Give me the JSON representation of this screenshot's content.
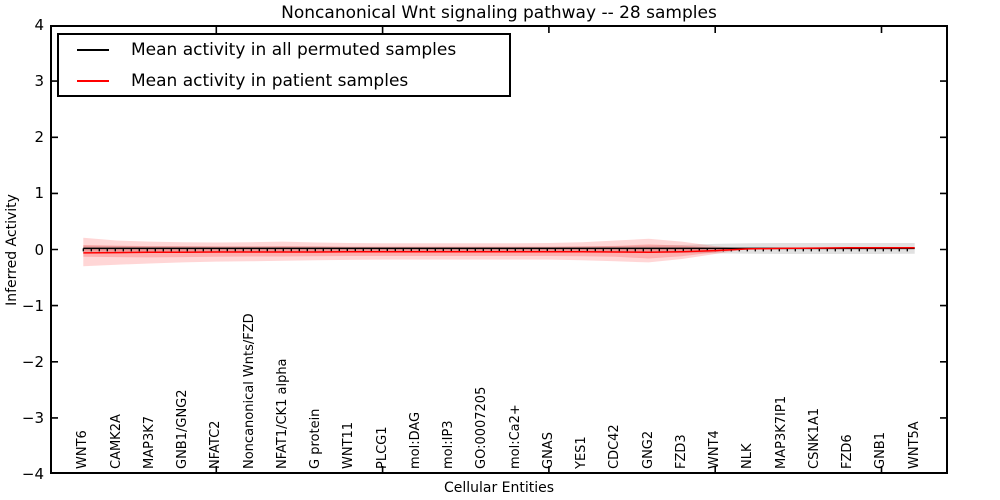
{
  "title": "Noncanonical Wnt signaling pathway -- 28 samples",
  "axes": {
    "ylabel": "Inferred Activity",
    "xlabel": "Cellular Entities",
    "ytick_labels": [
      "4",
      "3",
      "2",
      "1",
      "0",
      "−1",
      "−2",
      "−3",
      "−4"
    ]
  },
  "legend": {
    "items": [
      {
        "label": "Mean activity in all permuted samples",
        "color": "#000000"
      },
      {
        "label": "Mean activity in patient samples",
        "color": "#ff0000"
      }
    ]
  },
  "chart_data": {
    "type": "line",
    "title": "Noncanonical Wnt signaling pathway -- 28 samples",
    "xlabel": "Cellular Entities",
    "ylabel": "Inferred Activity",
    "ylim": [
      -4,
      4
    ],
    "xlim": [
      0,
      27
    ],
    "yticks": [
      4,
      3,
      2,
      1,
      0,
      -1,
      -2,
      -3,
      -4
    ],
    "xticks": [
      5,
      10,
      15,
      20,
      25
    ],
    "grid": false,
    "legend_position": "upper left",
    "categories": [
      "WNT6",
      "CAMK2A",
      "MAP3K7",
      "GNB1/GNG2",
      "NFATC2",
      "Noncanonical Wnts/FZD",
      "NFAT1/CK1 alpha",
      "G protein",
      "WNT11",
      "PLCG1",
      "mol:DAG",
      "mol:IP3",
      "GO:0007205",
      "mol:Ca2+",
      "GNAS",
      "YES1",
      "CDC42",
      "GNG2",
      "FZD3",
      "WNT4",
      "NLK",
      "MAP3K7IP1",
      "CSNK1A1",
      "FZD6",
      "GNB1",
      "WNT5A"
    ],
    "series": [
      {
        "name": "Mean activity in all permuted samples",
        "color": "#000000",
        "marker": "tick-down",
        "values": [
          0.02,
          0.02,
          0.02,
          0.02,
          0.02,
          0.02,
          0.02,
          0.02,
          0.02,
          0.02,
          0.02,
          0.02,
          0.02,
          0.02,
          0.02,
          0.02,
          0.02,
          0.02,
          0.02,
          0.02,
          0.02,
          0.02,
          0.02,
          0.02,
          0.02,
          0.02
        ]
      },
      {
        "name": "Mean activity in patient samples",
        "color": "#ff0000",
        "marker": "none",
        "values": [
          -0.06,
          -0.055,
          -0.05,
          -0.05,
          -0.045,
          -0.045,
          -0.045,
          -0.045,
          -0.04,
          -0.04,
          -0.04,
          -0.04,
          -0.04,
          -0.04,
          -0.04,
          -0.04,
          -0.045,
          -0.05,
          -0.04,
          -0.02,
          0.01,
          0.02,
          0.025,
          0.03,
          0.03,
          0.03
        ]
      }
    ],
    "bands": [
      {
        "name": "permuted-samples-band",
        "color": "#aaaaaa",
        "opacity": 0.35,
        "start_index": 0,
        "upper": [
          0.07,
          0.065,
          0.06,
          0.06,
          0.055,
          0.055,
          0.055,
          0.055,
          0.05,
          0.05,
          0.05,
          0.05,
          0.05,
          0.05,
          0.05,
          0.055,
          0.06,
          0.07,
          0.08,
          0.1,
          0.11,
          0.115,
          0.115,
          0.115,
          0.115,
          0.115
        ],
        "lower": [
          -0.04,
          -0.04,
          -0.04,
          -0.04,
          -0.04,
          -0.04,
          -0.04,
          -0.04,
          -0.04,
          -0.04,
          -0.04,
          -0.04,
          -0.04,
          -0.04,
          -0.04,
          -0.045,
          -0.05,
          -0.055,
          -0.06,
          -0.07,
          -0.075,
          -0.08,
          -0.08,
          -0.08,
          -0.08,
          -0.075
        ]
      },
      {
        "name": "patient-samples-outer-band",
        "color": "#ff0000",
        "opacity": 0.16,
        "start_index": 0,
        "upper": [
          0.21,
          0.16,
          0.14,
          0.13,
          0.125,
          0.13,
          0.14,
          0.125,
          0.115,
          0.11,
          0.11,
          0.11,
          0.11,
          0.11,
          0.115,
          0.13,
          0.16,
          0.19,
          0.14,
          0.06,
          0.01
        ],
        "lower": [
          -0.3,
          -0.27,
          -0.25,
          -0.23,
          -0.215,
          -0.21,
          -0.2,
          -0.19,
          -0.185,
          -0.18,
          -0.18,
          -0.18,
          -0.18,
          -0.18,
          -0.18,
          -0.19,
          -0.21,
          -0.23,
          -0.17,
          -0.08,
          0.01
        ]
      },
      {
        "name": "patient-samples-inner-band",
        "color": "#ff0000",
        "opacity": 0.18,
        "start_index": 0,
        "upper": [
          0.08,
          0.07,
          0.06,
          0.06,
          0.055,
          0.055,
          0.06,
          0.055,
          0.05,
          0.05,
          0.05,
          0.05,
          0.05,
          0.05,
          0.05,
          0.055,
          0.065,
          0.09,
          0.07,
          0.03,
          0.01
        ],
        "lower": [
          -0.13,
          -0.135,
          -0.14,
          -0.135,
          -0.13,
          -0.125,
          -0.125,
          -0.12,
          -0.115,
          -0.115,
          -0.115,
          -0.115,
          -0.115,
          -0.115,
          -0.115,
          -0.12,
          -0.13,
          -0.16,
          -0.12,
          -0.05,
          0.01
        ]
      }
    ]
  }
}
